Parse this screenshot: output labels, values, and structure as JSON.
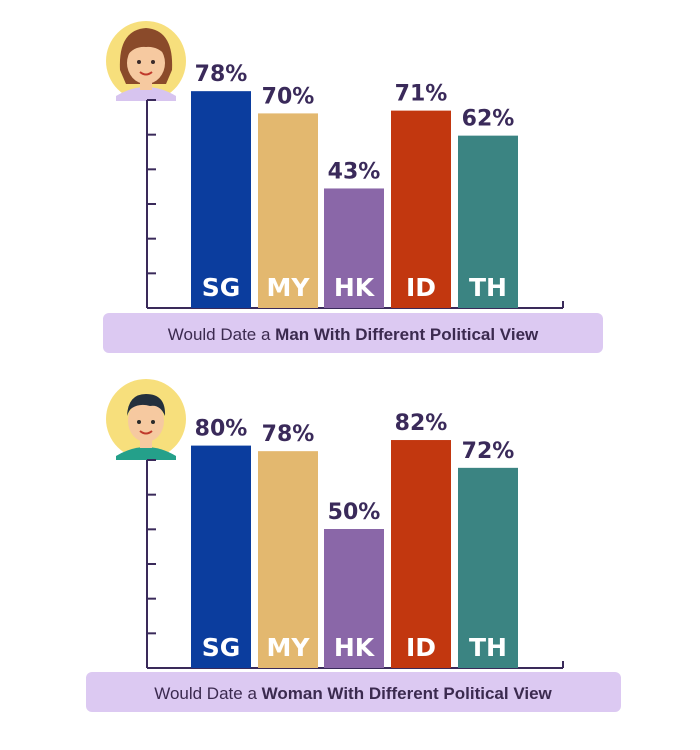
{
  "colors": {
    "SG": "#0b3d9e",
    "MY": "#e3b86f",
    "HK": "#8a67a8",
    "ID": "#c2370f",
    "TH": "#3b8482",
    "axis": "#3a2a5a",
    "caption_bg": "#dcc9f2",
    "value_text": "#3a2a5a",
    "avatar_bg": "#f7df7c"
  },
  "chart_data": [
    {
      "type": "bar",
      "categories": [
        "SG",
        "MY",
        "HK",
        "ID",
        "TH"
      ],
      "values": [
        78,
        70,
        43,
        71,
        62
      ],
      "value_labels": [
        "78%",
        "70%",
        "43%",
        "71%",
        "62%"
      ],
      "caption_prefix": "Would Date a ",
      "caption_bold": "Man With Different Political View",
      "icon": "woman-avatar-icon",
      "ylim": [
        0,
        100
      ],
      "grid": false
    },
    {
      "type": "bar",
      "categories": [
        "SG",
        "MY",
        "HK",
        "ID",
        "TH"
      ],
      "values": [
        80,
        78,
        50,
        82,
        72
      ],
      "value_labels": [
        "80%",
        "78%",
        "50%",
        "82%",
        "72%"
      ],
      "caption_prefix": "Would Date a ",
      "caption_bold": "Woman With Different Political View",
      "icon": "man-avatar-icon",
      "ylim": [
        0,
        100
      ],
      "grid": false
    }
  ]
}
